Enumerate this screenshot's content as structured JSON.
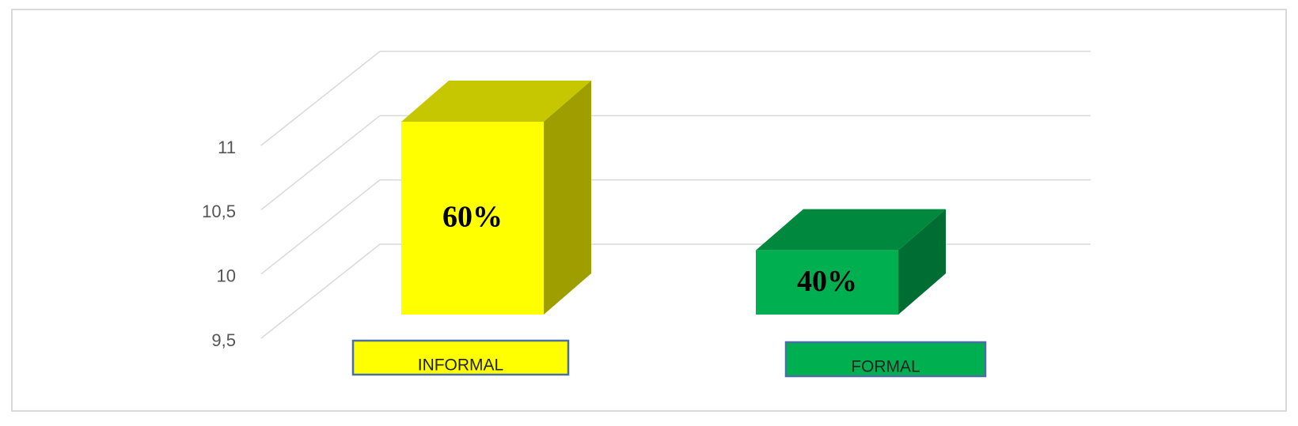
{
  "chart_data": {
    "type": "bar3d",
    "categories": [
      "INFORMAL",
      "FORMAL"
    ],
    "values": [
      11,
      10
    ],
    "annotations": [
      "60%",
      "40%"
    ],
    "colors": [
      "#ffff00",
      "#00b050"
    ],
    "ylim": [
      9.5,
      11
    ],
    "yticks": [
      {
        "value": 9.5,
        "label": "9,5"
      },
      10,
      {
        "value": 10.5,
        "label": "10,5"
      },
      11
    ],
    "grid": true
  }
}
